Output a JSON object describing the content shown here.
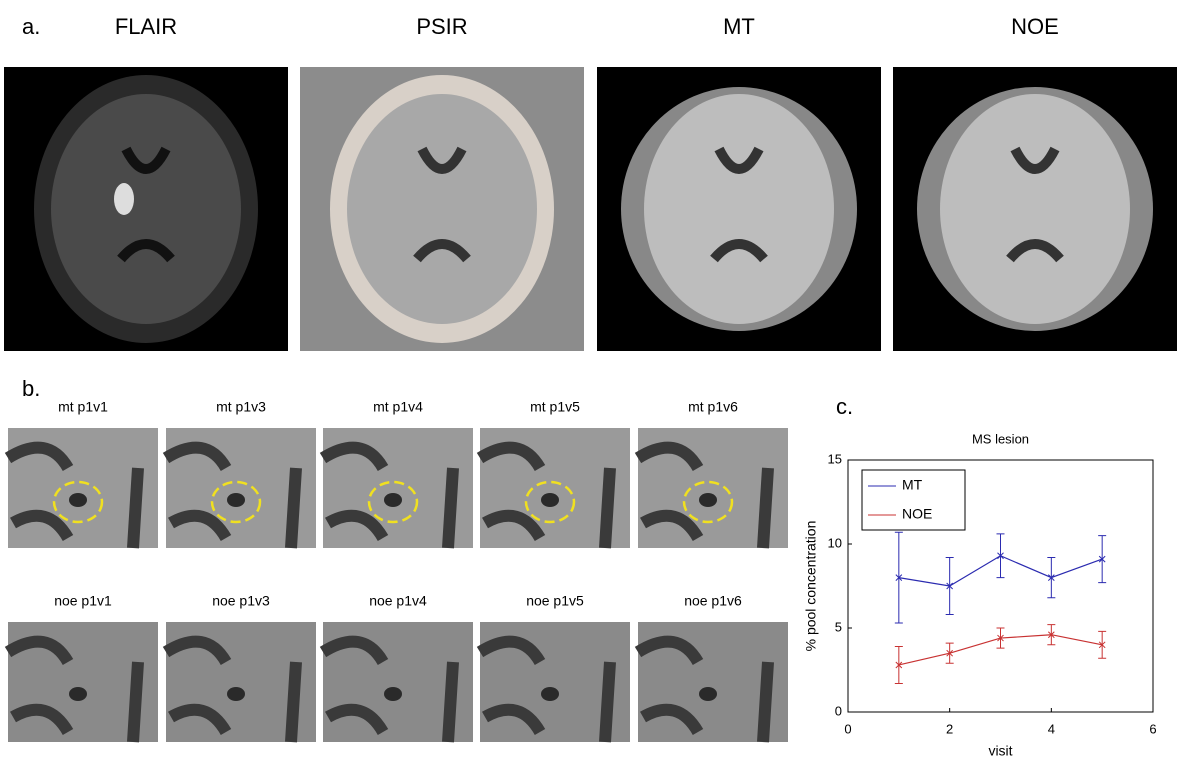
{
  "figure": {
    "panel_labels": [
      "a.",
      "b.",
      "c."
    ],
    "scans": [
      "FLAIR",
      "PSIR",
      "MT",
      "NOE"
    ],
    "mt_patches": [
      "mt p1v1",
      "mt p1v3",
      "mt p1v4",
      "mt p1v5",
      "mt p1v6"
    ],
    "noe_patches": [
      "noe p1v1",
      "noe p1v3",
      "noe p1v4",
      "noe p1v5",
      "noe p1v6"
    ]
  },
  "chart_data": {
    "type": "line",
    "title": "MS lesion",
    "x_label": "visit",
    "y_label": "% pool concentration",
    "x": [
      1,
      2,
      3,
      4,
      5
    ],
    "series": [
      {
        "name": "MT",
        "color": "#2b2bb0",
        "values": [
          8.0,
          7.5,
          9.3,
          8.0,
          9.1
        ],
        "errors": [
          2.7,
          1.7,
          1.3,
          1.2,
          1.4
        ]
      },
      {
        "name": "NOE",
        "color": "#c83232",
        "values": [
          2.8,
          3.5,
          4.4,
          4.6,
          4.0
        ],
        "errors": [
          1.1,
          0.6,
          0.6,
          0.6,
          0.8
        ]
      }
    ],
    "xlim": [
      0,
      6
    ],
    "xticks": [
      0,
      2,
      4,
      6
    ],
    "ylim": [
      0,
      15
    ],
    "yticks": [
      0,
      5,
      10,
      15
    ],
    "legend": "top-left"
  }
}
